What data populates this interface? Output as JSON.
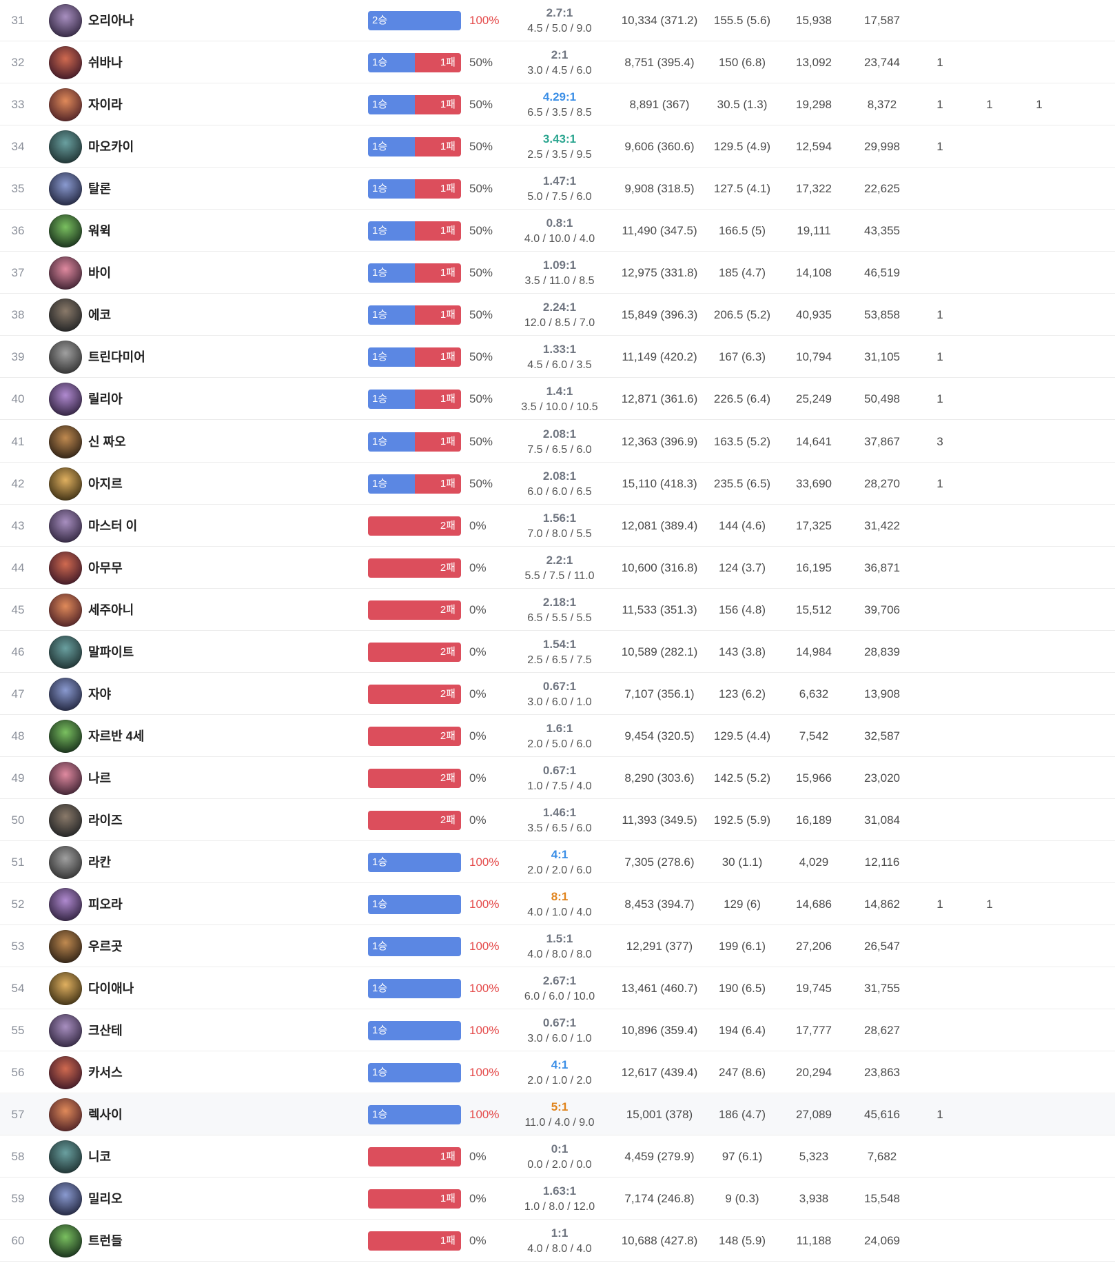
{
  "colors": {
    "win_bar": "#5b87e3",
    "loss_bar": "#dc4e5c",
    "high_winrate_text": "#e44a4a",
    "kda_green": "#2aa58f",
    "kda_blue": "#3a8ee6",
    "kda_orange": "#e0831b"
  },
  "rows": [
    {
      "rank": "31",
      "icon": "champion-orianna-icon",
      "name": "오리아나",
      "wins": 2,
      "losses": 0,
      "win_label": "2승",
      "loss_label": "",
      "pct": "100%",
      "kda": "2.7:1",
      "kda_color": "gray",
      "kda_detail": "4.5 / 5.0  / 9.0",
      "damage": "10,334 (371.2)",
      "cs": "155.5 (5.6)",
      "gold1": "15,938",
      "gold2": "17,587",
      "m1": "",
      "m2": "",
      "m3": ""
    },
    {
      "rank": "32",
      "icon": "champion-shyvana-icon",
      "name": "쉬바나",
      "wins": 1,
      "losses": 1,
      "win_label": "1승",
      "loss_label": "1패",
      "pct": "50%",
      "kda": "2:1",
      "kda_color": "gray",
      "kda_detail": "3.0 / 4.5  / 6.0",
      "damage": "8,751 (395.4)",
      "cs": "150 (6.8)",
      "gold1": "13,092",
      "gold2": "23,744",
      "m1": "1",
      "m2": "",
      "m3": ""
    },
    {
      "rank": "33",
      "icon": "champion-zyra-icon",
      "name": "자이라",
      "wins": 1,
      "losses": 1,
      "win_label": "1승",
      "loss_label": "1패",
      "pct": "50%",
      "kda": "4.29:1",
      "kda_color": "blue",
      "kda_detail": "6.5 / 3.5  / 8.5",
      "damage": "8,891 (367)",
      "cs": "30.5 (1.3)",
      "gold1": "19,298",
      "gold2": "8,372",
      "m1": "1",
      "m2": "1",
      "m3": "1"
    },
    {
      "rank": "34",
      "icon": "champion-maokai-icon",
      "name": "마오카이",
      "wins": 1,
      "losses": 1,
      "win_label": "1승",
      "loss_label": "1패",
      "pct": "50%",
      "kda": "3.43:1",
      "kda_color": "green",
      "kda_detail": "2.5 / 3.5  / 9.5",
      "damage": "9,606 (360.6)",
      "cs": "129.5 (4.9)",
      "gold1": "12,594",
      "gold2": "29,998",
      "m1": "1",
      "m2": "",
      "m3": ""
    },
    {
      "rank": "35",
      "icon": "champion-talon-icon",
      "name": "탈론",
      "wins": 1,
      "losses": 1,
      "win_label": "1승",
      "loss_label": "1패",
      "pct": "50%",
      "kda": "1.47:1",
      "kda_color": "gray",
      "kda_detail": "5.0 / 7.5  / 6.0",
      "damage": "9,908 (318.5)",
      "cs": "127.5 (4.1)",
      "gold1": "17,322",
      "gold2": "22,625",
      "m1": "",
      "m2": "",
      "m3": ""
    },
    {
      "rank": "36",
      "icon": "champion-ivern-icon",
      "name": "워윅",
      "wins": 1,
      "losses": 1,
      "win_label": "1승",
      "loss_label": "1패",
      "pct": "50%",
      "kda": "0.8:1",
      "kda_color": "gray",
      "kda_detail": "4.0 / 10.0  / 4.0",
      "damage": "11,490 (347.5)",
      "cs": "166.5 (5)",
      "gold1": "19,111",
      "gold2": "43,355",
      "m1": "",
      "m2": "",
      "m3": ""
    },
    {
      "rank": "37",
      "icon": "champion-vi-icon",
      "name": "바이",
      "wins": 1,
      "losses": 1,
      "win_label": "1승",
      "loss_label": "1패",
      "pct": "50%",
      "kda": "1.09:1",
      "kda_color": "gray",
      "kda_detail": "3.5 / 11.0  / 8.5",
      "damage": "12,975 (331.8)",
      "cs": "185 (4.7)",
      "gold1": "14,108",
      "gold2": "46,519",
      "m1": "",
      "m2": "",
      "m3": ""
    },
    {
      "rank": "38",
      "icon": "champion-ekko-icon",
      "name": "에코",
      "wins": 1,
      "losses": 1,
      "win_label": "1승",
      "loss_label": "1패",
      "pct": "50%",
      "kda": "2.24:1",
      "kda_color": "gray",
      "kda_detail": "12.0 / 8.5  / 7.0",
      "damage": "15,849 (396.3)",
      "cs": "206.5 (5.2)",
      "gold1": "40,935",
      "gold2": "53,858",
      "m1": "1",
      "m2": "",
      "m3": ""
    },
    {
      "rank": "39",
      "icon": "champion-tryndamere-icon",
      "name": "트린다미어",
      "wins": 1,
      "losses": 1,
      "win_label": "1승",
      "loss_label": "1패",
      "pct": "50%",
      "kda": "1.33:1",
      "kda_color": "gray",
      "kda_detail": "4.5 / 6.0  / 3.5",
      "damage": "11,149 (420.2)",
      "cs": "167 (6.3)",
      "gold1": "10,794",
      "gold2": "31,105",
      "m1": "1",
      "m2": "",
      "m3": ""
    },
    {
      "rank": "40",
      "icon": "champion-lillia-icon",
      "name": "릴리아",
      "wins": 1,
      "losses": 1,
      "win_label": "1승",
      "loss_label": "1패",
      "pct": "50%",
      "kda": "1.4:1",
      "kda_color": "gray",
      "kda_detail": "3.5 / 10.0  / 10.5",
      "damage": "12,871 (361.6)",
      "cs": "226.5 (6.4)",
      "gold1": "25,249",
      "gold2": "50,498",
      "m1": "1",
      "m2": "",
      "m3": ""
    },
    {
      "rank": "41",
      "icon": "champion-xinzhao-icon",
      "name": "신 짜오",
      "wins": 1,
      "losses": 1,
      "win_label": "1승",
      "loss_label": "1패",
      "pct": "50%",
      "kda": "2.08:1",
      "kda_color": "gray",
      "kda_detail": "7.5 / 6.5  / 6.0",
      "damage": "12,363 (396.9)",
      "cs": "163.5 (5.2)",
      "gold1": "14,641",
      "gold2": "37,867",
      "m1": "3",
      "m2": "",
      "m3": ""
    },
    {
      "rank": "42",
      "icon": "champion-azir-icon",
      "name": "아지르",
      "wins": 1,
      "losses": 1,
      "win_label": "1승",
      "loss_label": "1패",
      "pct": "50%",
      "kda": "2.08:1",
      "kda_color": "gray",
      "kda_detail": "6.0 / 6.0  / 6.5",
      "damage": "15,110 (418.3)",
      "cs": "235.5 (6.5)",
      "gold1": "33,690",
      "gold2": "28,270",
      "m1": "1",
      "m2": "",
      "m3": ""
    },
    {
      "rank": "43",
      "icon": "champion-masteryi-icon",
      "name": "마스터 이",
      "wins": 0,
      "losses": 2,
      "win_label": "",
      "loss_label": "2패",
      "pct": "0%",
      "kda": "1.56:1",
      "kda_color": "gray",
      "kda_detail": "7.0 / 8.0  / 5.5",
      "damage": "12,081 (389.4)",
      "cs": "144 (4.6)",
      "gold1": "17,325",
      "gold2": "31,422",
      "m1": "",
      "m2": "",
      "m3": ""
    },
    {
      "rank": "44",
      "icon": "champion-amumu-icon",
      "name": "아무무",
      "wins": 0,
      "losses": 2,
      "win_label": "",
      "loss_label": "2패",
      "pct": "0%",
      "kda": "2.2:1",
      "kda_color": "gray",
      "kda_detail": "5.5 / 7.5  / 11.0",
      "damage": "10,600 (316.8)",
      "cs": "124 (3.7)",
      "gold1": "16,195",
      "gold2": "36,871",
      "m1": "",
      "m2": "",
      "m3": ""
    },
    {
      "rank": "45",
      "icon": "champion-sejuani-icon",
      "name": "세주아니",
      "wins": 0,
      "losses": 2,
      "win_label": "",
      "loss_label": "2패",
      "pct": "0%",
      "kda": "2.18:1",
      "kda_color": "gray",
      "kda_detail": "6.5 / 5.5  / 5.5",
      "damage": "11,533 (351.3)",
      "cs": "156 (4.8)",
      "gold1": "15,512",
      "gold2": "39,706",
      "m1": "",
      "m2": "",
      "m3": ""
    },
    {
      "rank": "46",
      "icon": "champion-malphite-icon",
      "name": "말파이트",
      "wins": 0,
      "losses": 2,
      "win_label": "",
      "loss_label": "2패",
      "pct": "0%",
      "kda": "1.54:1",
      "kda_color": "gray",
      "kda_detail": "2.5 / 6.5  / 7.5",
      "damage": "10,589 (282.1)",
      "cs": "143 (3.8)",
      "gold1": "14,984",
      "gold2": "28,839",
      "m1": "",
      "m2": "",
      "m3": ""
    },
    {
      "rank": "47",
      "icon": "champion-xayah-icon",
      "name": "자야",
      "wins": 0,
      "losses": 2,
      "win_label": "",
      "loss_label": "2패",
      "pct": "0%",
      "kda": "0.67:1",
      "kda_color": "gray",
      "kda_detail": "3.0 / 6.0  / 1.0",
      "damage": "7,107 (356.1)",
      "cs": "123 (6.2)",
      "gold1": "6,632",
      "gold2": "13,908",
      "m1": "",
      "m2": "",
      "m3": ""
    },
    {
      "rank": "48",
      "icon": "champion-jarvan-icon",
      "name": "자르반 4세",
      "wins": 0,
      "losses": 2,
      "win_label": "",
      "loss_label": "2패",
      "pct": "0%",
      "kda": "1.6:1",
      "kda_color": "gray",
      "kda_detail": "2.0 / 5.0  / 6.0",
      "damage": "9,454 (320.5)",
      "cs": "129.5 (4.4)",
      "gold1": "7,542",
      "gold2": "32,587",
      "m1": "",
      "m2": "",
      "m3": ""
    },
    {
      "rank": "49",
      "icon": "champion-gnar-icon",
      "name": "나르",
      "wins": 0,
      "losses": 2,
      "win_label": "",
      "loss_label": "2패",
      "pct": "0%",
      "kda": "0.67:1",
      "kda_color": "gray",
      "kda_detail": "1.0 / 7.5  / 4.0",
      "damage": "8,290 (303.6)",
      "cs": "142.5 (5.2)",
      "gold1": "15,966",
      "gold2": "23,020",
      "m1": "",
      "m2": "",
      "m3": ""
    },
    {
      "rank": "50",
      "icon": "champion-ryze-icon",
      "name": "라이즈",
      "wins": 0,
      "losses": 2,
      "win_label": "",
      "loss_label": "2패",
      "pct": "0%",
      "kda": "1.46:1",
      "kda_color": "gray",
      "kda_detail": "3.5 / 6.5  / 6.0",
      "damage": "11,393 (349.5)",
      "cs": "192.5 (5.9)",
      "gold1": "16,189",
      "gold2": "31,084",
      "m1": "",
      "m2": "",
      "m3": ""
    },
    {
      "rank": "51",
      "icon": "champion-rakan-icon",
      "name": "라칸",
      "wins": 1,
      "losses": 0,
      "win_label": "1승",
      "loss_label": "",
      "pct": "100%",
      "kda": "4:1",
      "kda_color": "blue",
      "kda_detail": "2.0 / 2.0  / 6.0",
      "damage": "7,305 (278.6)",
      "cs": "30 (1.1)",
      "gold1": "4,029",
      "gold2": "12,116",
      "m1": "",
      "m2": "",
      "m3": ""
    },
    {
      "rank": "52",
      "icon": "champion-fiora-icon",
      "name": "피오라",
      "wins": 1,
      "losses": 0,
      "win_label": "1승",
      "loss_label": "",
      "pct": "100%",
      "kda": "8:1",
      "kda_color": "orange",
      "kda_detail": "4.0 / 1.0  / 4.0",
      "damage": "8,453 (394.7)",
      "cs": "129 (6)",
      "gold1": "14,686",
      "gold2": "14,862",
      "m1": "1",
      "m2": "1",
      "m3": ""
    },
    {
      "rank": "53",
      "icon": "champion-urgot-icon",
      "name": "우르곳",
      "wins": 1,
      "losses": 0,
      "win_label": "1승",
      "loss_label": "",
      "pct": "100%",
      "kda": "1.5:1",
      "kda_color": "gray",
      "kda_detail": "4.0 / 8.0  / 8.0",
      "damage": "12,291 (377)",
      "cs": "199 (6.1)",
      "gold1": "27,206",
      "gold2": "26,547",
      "m1": "",
      "m2": "",
      "m3": ""
    },
    {
      "rank": "54",
      "icon": "champion-diana-icon",
      "name": "다이애나",
      "wins": 1,
      "losses": 0,
      "win_label": "1승",
      "loss_label": "",
      "pct": "100%",
      "kda": "2.67:1",
      "kda_color": "gray",
      "kda_detail": "6.0 / 6.0  / 10.0",
      "damage": "13,461 (460.7)",
      "cs": "190 (6.5)",
      "gold1": "19,745",
      "gold2": "31,755",
      "m1": "",
      "m2": "",
      "m3": ""
    },
    {
      "rank": "55",
      "icon": "champion-ksante-icon",
      "name": "크산테",
      "wins": 1,
      "losses": 0,
      "win_label": "1승",
      "loss_label": "",
      "pct": "100%",
      "kda": "0.67:1",
      "kda_color": "gray",
      "kda_detail": "3.0 / 6.0  / 1.0",
      "damage": "10,896 (359.4)",
      "cs": "194 (6.4)",
      "gold1": "17,777",
      "gold2": "28,627",
      "m1": "",
      "m2": "",
      "m3": ""
    },
    {
      "rank": "56",
      "icon": "champion-kassadin-icon",
      "name": "카서스",
      "wins": 1,
      "losses": 0,
      "win_label": "1승",
      "loss_label": "",
      "pct": "100%",
      "kda": "4:1",
      "kda_color": "blue",
      "kda_detail": "2.0 / 1.0  / 2.0",
      "damage": "12,617 (439.4)",
      "cs": "247 (8.6)",
      "gold1": "20,294",
      "gold2": "23,863",
      "m1": "",
      "m2": "",
      "m3": ""
    },
    {
      "rank": "57",
      "icon": "champion-reksai-icon",
      "name": "렉사이",
      "wins": 1,
      "losses": 0,
      "win_label": "1승",
      "loss_label": "",
      "pct": "100%",
      "kda": "5:1",
      "kda_color": "orange",
      "kda_detail": "11.0 / 4.0  / 9.0",
      "damage": "15,001 (378)",
      "cs": "186 (4.7)",
      "gold1": "27,089",
      "gold2": "45,616",
      "m1": "1",
      "m2": "",
      "m3": "",
      "highlight": true
    },
    {
      "rank": "58",
      "icon": "champion-neeko-icon",
      "name": "니코",
      "wins": 0,
      "losses": 1,
      "win_label": "",
      "loss_label": "1패",
      "pct": "0%",
      "kda": "0:1",
      "kda_color": "gray",
      "kda_detail": "0.0 / 2.0  / 0.0",
      "damage": "4,459 (279.9)",
      "cs": "97 (6.1)",
      "gold1": "5,323",
      "gold2": "7,682",
      "m1": "",
      "m2": "",
      "m3": ""
    },
    {
      "rank": "59",
      "icon": "champion-milio-icon",
      "name": "밀리오",
      "wins": 0,
      "losses": 1,
      "win_label": "",
      "loss_label": "1패",
      "pct": "0%",
      "kda": "1.63:1",
      "kda_color": "gray",
      "kda_detail": "1.0 / 8.0  / 12.0",
      "damage": "7,174 (246.8)",
      "cs": "9 (0.3)",
      "gold1": "3,938",
      "gold2": "15,548",
      "m1": "",
      "m2": "",
      "m3": ""
    },
    {
      "rank": "60",
      "icon": "champion-trundle-icon",
      "name": "트런들",
      "wins": 0,
      "losses": 1,
      "win_label": "",
      "loss_label": "1패",
      "pct": "0%",
      "kda": "1:1",
      "kda_color": "gray",
      "kda_detail": "4.0 / 8.0  / 4.0",
      "damage": "10,688 (427.8)",
      "cs": "148 (5.9)",
      "gold1": "11,188",
      "gold2": "24,069",
      "m1": "",
      "m2": "",
      "m3": ""
    }
  ]
}
